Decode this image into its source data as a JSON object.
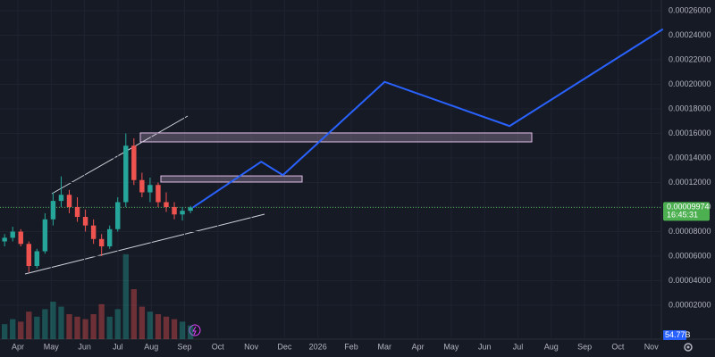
{
  "chart_data": {
    "type": "candlestick",
    "open": [
      7.2e-05,
      7.5e-05,
      8e-05,
      7e-05,
      5.2e-05,
      6.4e-05,
      9e-05,
      0.000105,
      0.00011,
      0.0001,
      9.2e-05,
      8.5e-05,
      7.4e-05,
      6.8e-05,
      8.2e-05,
      0.000104,
      0.00015,
      0.000122,
      0.000112,
      0.000118,
      0.000104,
      0.0001,
      9.4e-05,
      9.7e-05
    ],
    "high": [
      7.8e-05,
      8.4e-05,
      8.2e-05,
      7.2e-05,
      6.6e-05,
      9.5e-05,
      0.000112,
      0.000125,
      0.000114,
      0.000108,
      9.8e-05,
      9e-05,
      7.8e-05,
      8.5e-05,
      0.000108,
      0.00016,
      0.000156,
      0.000128,
      0.000124,
      0.00012,
      0.000112,
      0.000104,
      0.0001,
      0.000101
    ],
    "low": [
      6.8e-05,
      7.2e-05,
      6.8e-05,
      4.7e-05,
      5e-05,
      6.2e-05,
      8.5e-05,
      0.0001,
      9.5e-05,
      8.8e-05,
      8e-05,
      7e-05,
      6e-05,
      6.6e-05,
      8e-05,
      0.0001,
      0.000118,
      0.000108,
      0.000104,
      0.0001,
      9.6e-05,
      9e-05,
      8.9e-05,
      9.5e-05
    ],
    "close": [
      7.5e-05,
      8e-05,
      7e-05,
      5.2e-05,
      6.4e-05,
      9e-05,
      0.000105,
      0.00011,
      0.0001,
      9.2e-05,
      8.5e-05,
      7.4e-05,
      6.8e-05,
      8.2e-05,
      0.000104,
      0.00015,
      0.000122,
      0.000112,
      0.000118,
      0.000104,
      0.0001,
      9.4e-05,
      9.7e-05,
      9.974e-05
    ],
    "up_color": "#26a69a",
    "down_color": "#ef5350",
    "volume": [
      60,
      80,
      70,
      110,
      90,
      120,
      150,
      130,
      100,
      90,
      80,
      100,
      140,
      90,
      120,
      340,
      200,
      130,
      110,
      100,
      90,
      80,
      70,
      54.77
    ],
    "last_volume": {
      "value": 54.77,
      "label": "54.77B"
    },
    "ylim": [
      -7.6e-06,
      0.0002687
    ],
    "yticks": [
      {
        "value": 2e-05,
        "label": "0.00002000"
      },
      {
        "value": 4e-05,
        "label": "0.00004000"
      },
      {
        "value": 6e-05,
        "label": "0.00006000"
      },
      {
        "value": 8e-05,
        "label": "0.00008000"
      },
      {
        "value": 0.0001,
        "label": "0.00010000"
      },
      {
        "value": 0.00012,
        "label": "0.00012000"
      },
      {
        "value": 0.00014,
        "label": "0.00014000"
      },
      {
        "value": 0.00016,
        "label": "0.00016000"
      },
      {
        "value": 0.00018,
        "label": "0.00018000"
      },
      {
        "value": 0.0002,
        "label": "0.00020000"
      },
      {
        "value": 0.00022,
        "label": "0.00022000"
      },
      {
        "value": 0.00024,
        "label": "0.00024000"
      },
      {
        "value": 0.00026,
        "label": "0.00026000"
      }
    ],
    "time_labels": [
      "Apr",
      "May",
      "Jun",
      "Jul",
      "Aug",
      "Sep",
      "Oct",
      "Nov",
      "Dec",
      "2026",
      "Feb",
      "Mar",
      "Apr",
      "May",
      "Jun",
      "Jul",
      "Aug",
      "Sep",
      "Oct",
      "Nov"
    ],
    "current_price": {
      "value": 9.974e-05,
      "label": "0.00009974"
    },
    "countdown": "16:45:31",
    "projection": {
      "color": "#2962ff",
      "values": [
        9.97e-05,
        0.000137,
        0.000126,
        0.000202,
        0.000166,
        0.000245
      ]
    },
    "zones": [
      {
        "top": 0.0001604,
        "bottom": 0.0001531
      },
      {
        "top": 0.0001254,
        "bottom": 0.0001204
      }
    ],
    "grid": true
  }
}
